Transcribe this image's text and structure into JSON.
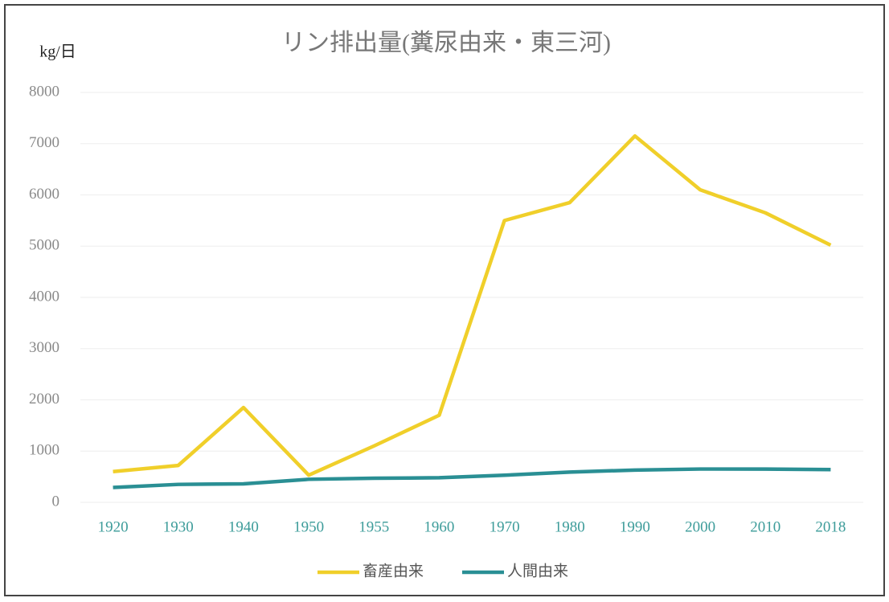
{
  "chart_data": {
    "type": "line",
    "title": "リン排出量(糞尿由来・東三河)",
    "y_label": "kg/日",
    "categories": [
      "1920",
      "1930",
      "1940",
      "1950",
      "1955",
      "1960",
      "1970",
      "1980",
      "1990",
      "2000",
      "2010",
      "2018"
    ],
    "series": [
      {
        "name": "畜産由来",
        "color": "#f0cf2a",
        "values": [
          600,
          720,
          1850,
          530,
          1100,
          1700,
          5500,
          5850,
          7150,
          6100,
          5650,
          5020
        ]
      },
      {
        "name": "人間由来",
        "color": "#2a8f94",
        "values": [
          290,
          350,
          360,
          450,
          470,
          480,
          530,
          590,
          630,
          650,
          650,
          640
        ]
      }
    ],
    "ylim": [
      0,
      8000
    ],
    "yticks": [
      0,
      1000,
      2000,
      3000,
      4000,
      5000,
      6000,
      7000,
      8000
    ],
    "grid": true,
    "legend": "bottom"
  }
}
